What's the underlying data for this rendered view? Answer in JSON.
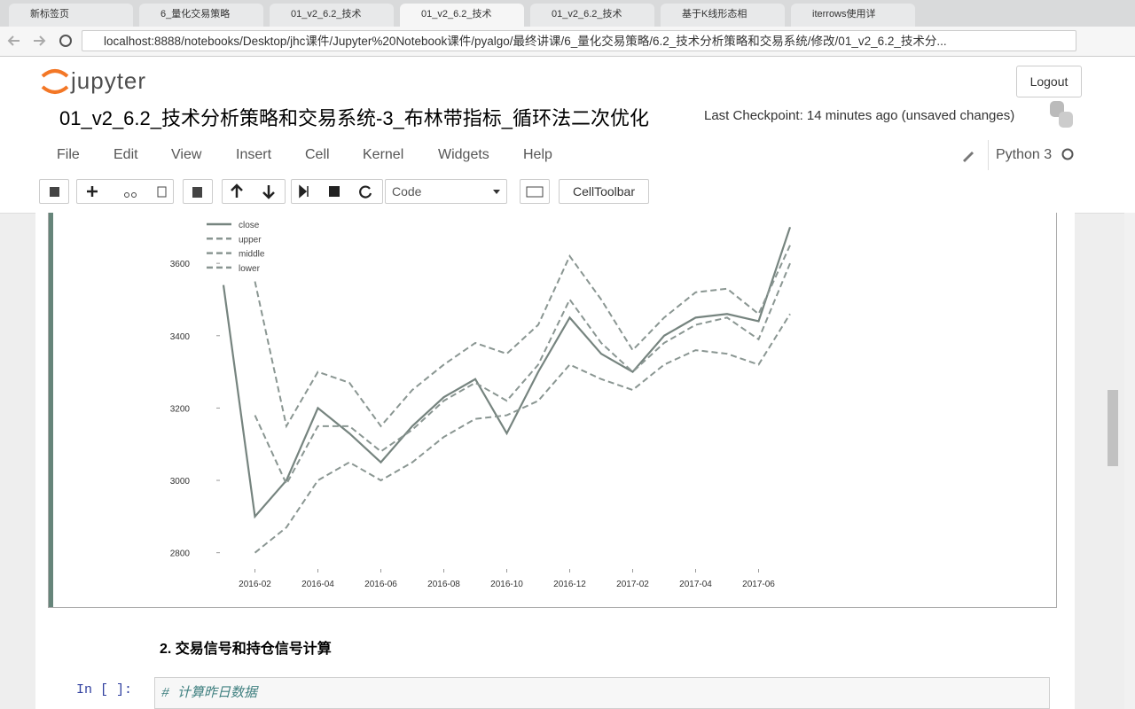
{
  "browser": {
    "tabs": [
      "新标签页",
      "6_量化交易策略",
      "01_v2_6.2_技术",
      "01_v2_6.2_技术",
      "01_v2_6.2_技术",
      "基于K线形态相",
      "iterrows使用详"
    ],
    "active_tab": 3,
    "url": "localhost:8888/notebooks/Desktop/jhc课件/Jupyter%20Notebook课件/pyalgo/最终讲课/6_量化交易策略/6.2_技术分析策略和交易系统/修改/01_v2_6.2_技术分..."
  },
  "header": {
    "logo": "jupyter",
    "logout": "Logout",
    "notebook_title": "01_v2_6.2_技术分析策略和交易系统-3_布林带指标_循环法二次优化",
    "checkpoint": "Last Checkpoint: 14 minutes ago (unsaved changes)"
  },
  "menu": {
    "items": [
      "File",
      "Edit",
      "View",
      "Insert",
      "Cell",
      "Kernel",
      "Widgets",
      "Help"
    ],
    "kernel": "Python 3"
  },
  "toolbar": {
    "cell_type": "Code",
    "cell_toolbar": "CellToolbar"
  },
  "chart_data": {
    "type": "line",
    "x": [
      "2016-01",
      "2016-02",
      "2016-03",
      "2016-04",
      "2016-05",
      "2016-06",
      "2016-07",
      "2016-08",
      "2016-09",
      "2016-10",
      "2016-11",
      "2016-12",
      "2017-01",
      "2017-02",
      "2017-03",
      "2017-04",
      "2017-05",
      "2017-06",
      "2017-07"
    ],
    "series": [
      {
        "name": "close",
        "color": "#76847f",
        "values": [
          3540,
          2900,
          3000,
          3200,
          3130,
          3050,
          3150,
          3230,
          3280,
          3130,
          3300,
          3450,
          3350,
          3300,
          3400,
          3450,
          3460,
          3440,
          3700
        ]
      },
      {
        "name": "upper",
        "color": "#8a9692",
        "values": [
          null,
          3550,
          3150,
          3300,
          3270,
          3150,
          3250,
          3320,
          3380,
          3350,
          3430,
          3620,
          3500,
          3360,
          3450,
          3520,
          3530,
          3460,
          3650
        ]
      },
      {
        "name": "middle",
        "color": "#8a9692",
        "values": [
          null,
          3180,
          2990,
          3150,
          3150,
          3080,
          3140,
          3220,
          3270,
          3220,
          3320,
          3500,
          3380,
          3300,
          3380,
          3430,
          3450,
          3390,
          3600
        ]
      },
      {
        "name": "lower",
        "color": "#8a9692",
        "values": [
          null,
          2800,
          2870,
          3000,
          3050,
          3000,
          3050,
          3120,
          3170,
          3180,
          3220,
          3320,
          3280,
          3250,
          3320,
          3360,
          3350,
          3320,
          3460
        ]
      }
    ],
    "ylim": [
      2760,
      3740
    ],
    "yticks": [
      2800,
      3000,
      3200,
      3400,
      3600
    ],
    "xticks": [
      "2016-02",
      "2016-04",
      "2016-06",
      "2016-08",
      "2016-10",
      "2016-12",
      "2017-02",
      "2017-04",
      "2017-06"
    ],
    "legend": "upper left",
    "grid": false
  },
  "markdown": {
    "heading": "2. 交易信号和持仓信号计算"
  },
  "code_cell": {
    "prompt": "In  [  ]:",
    "code": "# 计算昨日数据"
  }
}
